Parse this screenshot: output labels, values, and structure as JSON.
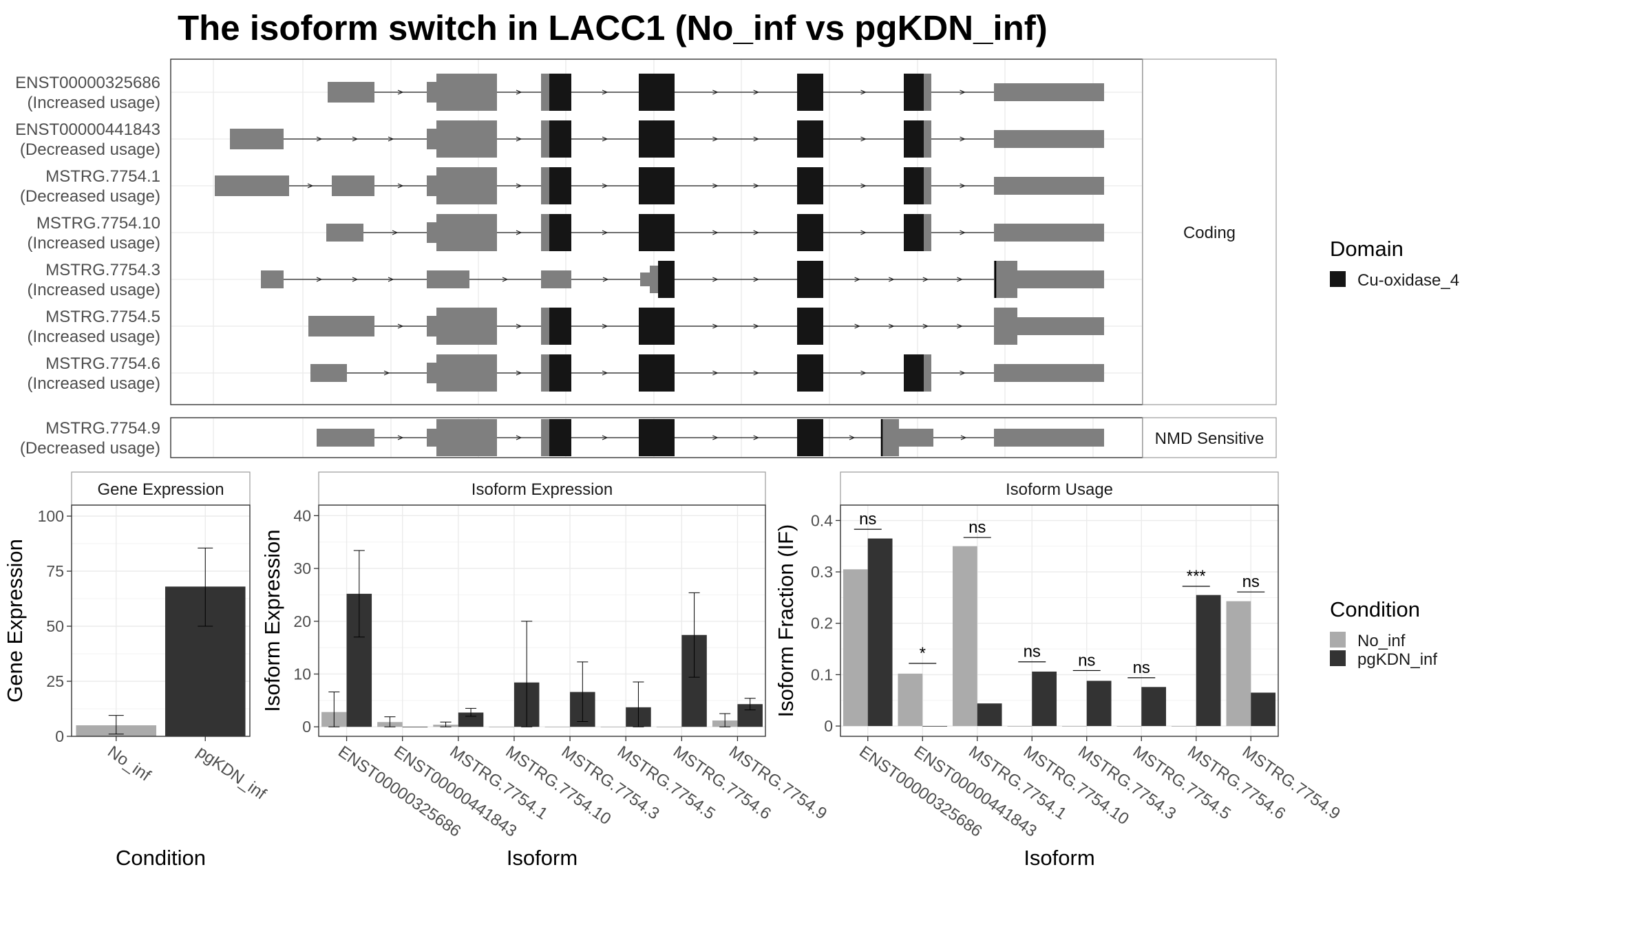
{
  "title": "The isoform switch in LACC1 (No_inf vs pgKDN_inf)",
  "colors": {
    "no_inf": "#ABABAB",
    "pgkdn_inf": "#333333",
    "exon": "#7F7F7F",
    "domain": "#151515",
    "panel_border": "#333333",
    "strip_border": "#999999",
    "grid": "#EBEBEB"
  },
  "structure": {
    "coding_panel_label": "Coding",
    "nmd_panel_label": "NMD Sensitive",
    "transcripts": [
      {
        "id": "ENST00000325686",
        "usage": "(Increased usage)",
        "group": "coding"
      },
      {
        "id": "ENST00000441843",
        "usage": "(Decreased usage)",
        "group": "coding"
      },
      {
        "id": "MSTRG.7754.1",
        "usage": "(Decreased usage)",
        "group": "coding"
      },
      {
        "id": "MSTRG.7754.10",
        "usage": "(Increased usage)",
        "group": "coding"
      },
      {
        "id": "MSTRG.7754.3",
        "usage": "(Increased usage)",
        "group": "coding"
      },
      {
        "id": "MSTRG.7754.5",
        "usage": "(Increased usage)",
        "group": "coding"
      },
      {
        "id": "MSTRG.7754.6",
        "usage": "(Increased usage)",
        "group": "coding"
      },
      {
        "id": "MSTRG.7754.9",
        "usage": "(Decreased usage)",
        "group": "nmd"
      }
    ]
  },
  "legend": {
    "domain_title": "Domain",
    "domain_items": [
      "Cu-oxidase_4"
    ],
    "condition_title": "Condition",
    "condition_items": [
      "No_inf",
      "pgKDN_inf"
    ]
  },
  "chart_data": [
    {
      "type": "bar",
      "title": "Gene Expression",
      "xlabel": "Condition",
      "ylabel": "Gene Expression",
      "categories": [
        "No_inf",
        "pgKDN_inf"
      ],
      "values": [
        5,
        68
      ],
      "error": [
        [
          1,
          9.5
        ],
        [
          50,
          85.5
        ]
      ],
      "ylim": [
        0,
        105
      ],
      "yticks": [
        0,
        25,
        50,
        75,
        100
      ]
    },
    {
      "type": "bar",
      "title": "Isoform Expression",
      "xlabel": "Isoform",
      "ylabel": "Isoform Expression",
      "categories": [
        "ENST00000325686",
        "ENST00000441843",
        "MSTRG.7754.1",
        "MSTRG.7754.10",
        "MSTRG.7754.3",
        "MSTRG.7754.5",
        "MSTRG.7754.6",
        "MSTRG.7754.9"
      ],
      "series": [
        {
          "name": "No_inf",
          "values": [
            2.8,
            0.9,
            0.4,
            0,
            0,
            0,
            0,
            1.2
          ],
          "error": [
            [
              0,
              6.6
            ],
            [
              0,
              1.9
            ],
            [
              0,
              0.9
            ],
            null,
            null,
            null,
            null,
            [
              0,
              2.5
            ]
          ]
        },
        {
          "name": "pgKDN_inf",
          "values": [
            25.2,
            0,
            2.7,
            8.4,
            6.6,
            3.7,
            17.4,
            4.3
          ],
          "error": [
            [
              17,
              33.4
            ],
            null,
            [
              2,
              3.5
            ],
            [
              0,
              20
            ],
            [
              1,
              12.3
            ],
            [
              0,
              8.5
            ],
            [
              9.4,
              25.4
            ],
            [
              3.2,
              5.4
            ]
          ]
        }
      ],
      "ylim": [
        -1.8,
        42
      ],
      "yticks": [
        0,
        10,
        20,
        30,
        40
      ]
    },
    {
      "type": "bar",
      "title": "Isoform Usage",
      "xlabel": "Isoform",
      "ylabel": "Isoform Fraction (IF)",
      "categories": [
        "ENST00000325686",
        "ENST00000441843",
        "MSTRG.7754.1",
        "MSTRG.7754.10",
        "MSTRG.7754.3",
        "MSTRG.7754.5",
        "MSTRG.7754.6",
        "MSTRG.7754.9"
      ],
      "series": [
        {
          "name": "No_inf",
          "values": [
            0.305,
            0.102,
            0.35,
            0,
            0,
            0,
            0,
            0.243
          ]
        },
        {
          "name": "pgKDN_inf",
          "values": [
            0.365,
            0,
            0.044,
            0.106,
            0.088,
            0.076,
            0.255,
            0.065
          ]
        }
      ],
      "significance": [
        "ns",
        "*",
        "ns",
        "ns",
        "ns",
        "ns",
        "***",
        "ns"
      ],
      "sig_line_y": [
        0.383,
        0.122,
        0.367,
        0.125,
        0.108,
        0.094,
        0.272,
        0.261
      ],
      "ylim": [
        -0.02,
        0.43
      ],
      "yticks": [
        0.0,
        0.1,
        0.2,
        0.3,
        0.4
      ]
    }
  ]
}
